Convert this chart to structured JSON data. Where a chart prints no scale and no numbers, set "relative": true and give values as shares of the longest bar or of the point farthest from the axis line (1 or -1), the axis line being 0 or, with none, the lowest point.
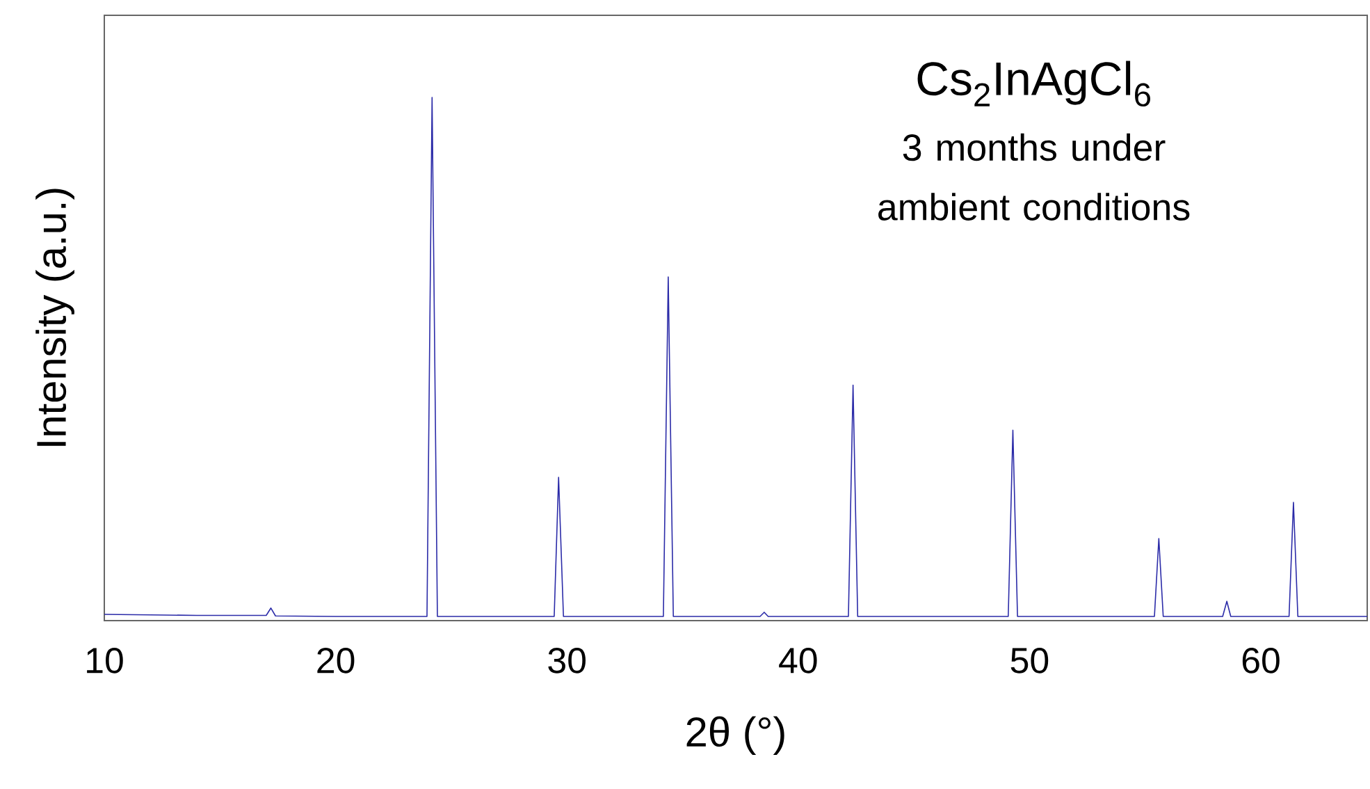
{
  "chart_data": {
    "type": "line",
    "title": "Cs$_{2}$InAgCl$_{6}$",
    "subtitle": "3 months under ambient conditions",
    "xlabel": "2θ (°)",
    "ylabel": "Intensity (a.u.)",
    "relative": true,
    "xlim": [
      10,
      64.6
    ],
    "xticks": [
      10,
      20,
      30,
      40,
      50,
      60
    ],
    "series": [
      {
        "color": "#2b2ba8",
        "x": [
          10,
          12,
          14,
          16,
          17.0,
          17.2,
          17.4,
          20,
          23.95,
          24.17,
          24.4,
          27,
          29.45,
          29.64,
          29.85,
          32,
          34.17,
          34.38,
          34.6,
          36.5,
          38.35,
          38.53,
          38.7,
          40.5,
          42.17,
          42.37,
          42.57,
          45,
          49.08,
          49.28,
          49.48,
          52,
          55.4,
          55.59,
          55.78,
          58.35,
          58.53,
          58.7,
          61.22,
          61.41,
          61.6,
          64.6
        ],
        "values": [
          0.012,
          0.011,
          0.01,
          0.01,
          0.01,
          0.024,
          0.009,
          0.008,
          0.008,
          1.0,
          0.008,
          0.008,
          0.008,
          0.274,
          0.008,
          0.008,
          0.008,
          0.657,
          0.008,
          0.008,
          0.008,
          0.016,
          0.008,
          0.008,
          0.008,
          0.45,
          0.008,
          0.008,
          0.008,
          0.364,
          0.008,
          0.008,
          0.008,
          0.157,
          0.008,
          0.008,
          0.037,
          0.008,
          0.008,
          0.226,
          0.008,
          0.008
        ]
      }
    ]
  }
}
